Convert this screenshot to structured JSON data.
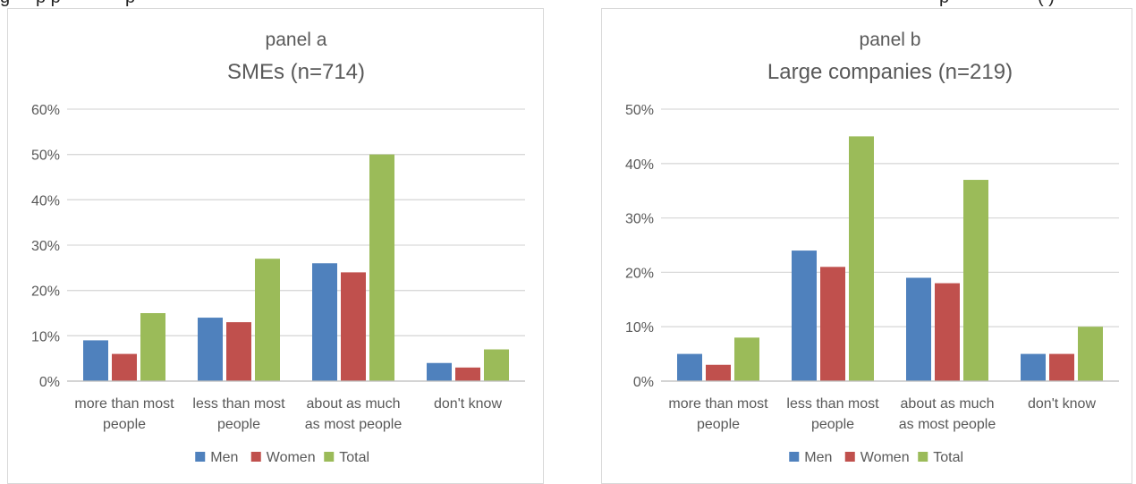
{
  "chart_data": [
    {
      "type": "bar",
      "panel_label": "panel a",
      "title": "SMEs (n=714)",
      "categories": [
        [
          "more than most",
          "people"
        ],
        [
          "less than most",
          "people"
        ],
        [
          "about as much",
          "as most people"
        ],
        [
          "don't know"
        ]
      ],
      "series": [
        {
          "name": "Men",
          "color": "#4f81bd",
          "values": [
            9,
            14,
            26,
            4
          ]
        },
        {
          "name": "Women",
          "color": "#c0504d",
          "values": [
            6,
            13,
            24,
            3
          ]
        },
        {
          "name": "Total",
          "color": "#9bbb59",
          "values": [
            15,
            27,
            50,
            7
          ]
        }
      ],
      "ylim": [
        0,
        60
      ],
      "yticks": [
        0,
        10,
        20,
        30,
        40,
        50,
        60
      ],
      "ytick_labels": [
        "0%",
        "10%",
        "20%",
        "30%",
        "40%",
        "50%",
        "60%"
      ],
      "xlabel": "",
      "ylabel": "",
      "grid": true,
      "legend": "bottom"
    },
    {
      "type": "bar",
      "panel_label": "panel b",
      "title": "Large companies (n=219)",
      "categories": [
        [
          "more than most",
          "people"
        ],
        [
          "less than most",
          "people"
        ],
        [
          "about as much",
          "as most people"
        ],
        [
          "don't know"
        ]
      ],
      "series": [
        {
          "name": "Men",
          "color": "#4f81bd",
          "values": [
            5,
            24,
            19,
            5
          ]
        },
        {
          "name": "Women",
          "color": "#c0504d",
          "values": [
            3,
            21,
            18,
            5
          ]
        },
        {
          "name": "Total",
          "color": "#9bbb59",
          "values": [
            8,
            45,
            37,
            10
          ]
        }
      ],
      "ylim": [
        0,
        50
      ],
      "yticks": [
        0,
        10,
        20,
        30,
        40,
        50
      ],
      "ytick_labels": [
        "0%",
        "10%",
        "20%",
        "30%",
        "40%",
        "50%"
      ],
      "xlabel": "",
      "ylabel": "",
      "grid": true,
      "legend": "bottom"
    }
  ]
}
